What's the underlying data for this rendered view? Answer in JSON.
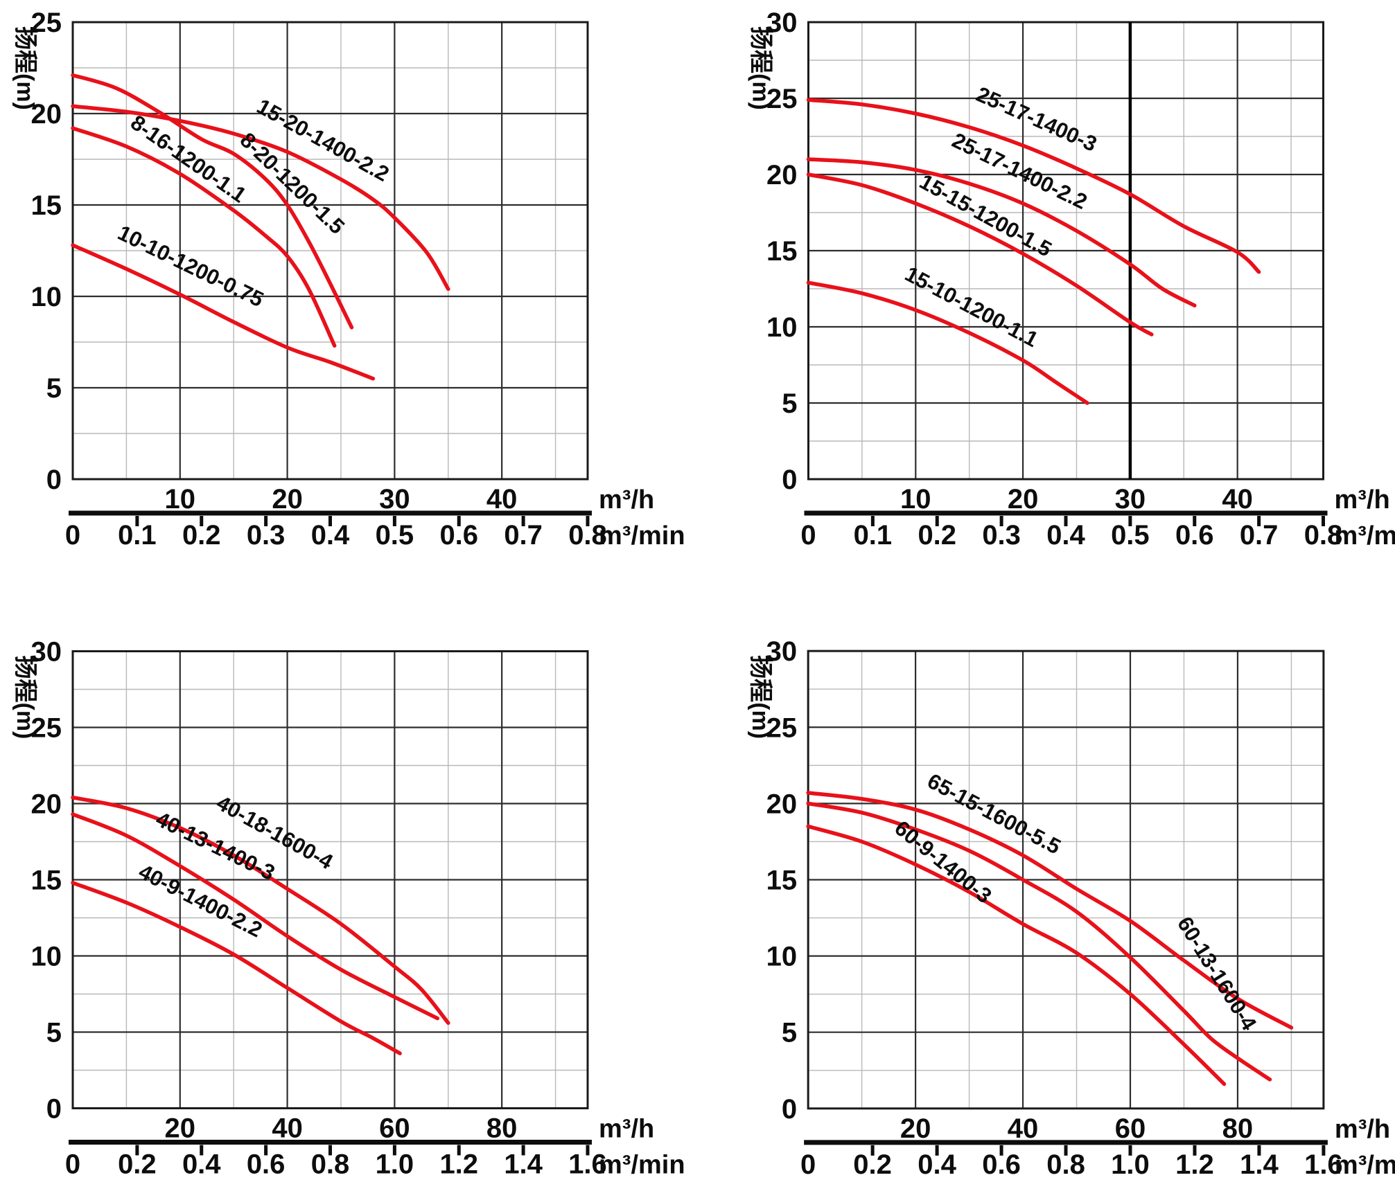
{
  "page": {
    "background": "#ffffff"
  },
  "chart_data": [
    {
      "type": "line",
      "id": "pump-curves-8-15",
      "ylabel": "扬程(m)",
      "x_unit_hour": "m³/h",
      "x_unit_min": "m³/min",
      "ylim": [
        0,
        25
      ],
      "xlim": [
        0,
        48
      ],
      "y_major": 5,
      "y_minor": 2.5,
      "x_major": 10,
      "x_minor": 5,
      "grid": true,
      "legend": "labels-on-curves",
      "curve_color": "#e8111a",
      "x_ticks_hour": [
        10,
        20,
        30,
        40
      ],
      "x_ticks_min": [
        "0",
        "0.1",
        "0.2",
        "0.3",
        "0.4",
        "0.5",
        "0.6",
        "0.7",
        "0.8"
      ],
      "vline_x": null,
      "series": [
        {
          "name": "8-20-1200-1.5",
          "points": [
            [
              0,
              22.1
            ],
            [
              4,
              21.4
            ],
            [
              8,
              20.1
            ],
            [
              12,
              18.6
            ],
            [
              15,
              17.8
            ],
            [
              18,
              16.4
            ],
            [
              20,
              15.0
            ],
            [
              22,
              13.0
            ],
            [
              24,
              10.7
            ],
            [
              26,
              8.3
            ]
          ],
          "label_x": 20.0,
          "label_y": 15.9,
          "label_angle": 44
        },
        {
          "name": "15-20-1400-2.2",
          "points": [
            [
              0,
              20.4
            ],
            [
              5,
              20.1
            ],
            [
              10,
              19.6
            ],
            [
              15,
              18.9
            ],
            [
              20,
              17.9
            ],
            [
              25,
              16.4
            ],
            [
              28,
              15.3
            ],
            [
              30,
              14.3
            ],
            [
              33,
              12.4
            ],
            [
              35,
              10.4
            ]
          ],
          "label_x": 23.0,
          "label_y": 18.2,
          "label_angle": 29
        },
        {
          "name": "8-16-1200-1.1",
          "points": [
            [
              0,
              19.2
            ],
            [
              5,
              18.2
            ],
            [
              10,
              16.7
            ],
            [
              15,
              14.7
            ],
            [
              18,
              13.3
            ],
            [
              20,
              12.2
            ],
            [
              22,
              10.4
            ],
            [
              24.4,
              7.3
            ]
          ],
          "label_x": 10.4,
          "label_y": 17.2,
          "label_angle": 35
        },
        {
          "name": "10-10-1200-0.75",
          "points": [
            [
              0,
              12.8
            ],
            [
              5,
              11.5
            ],
            [
              10,
              10.1
            ],
            [
              15,
              8.6
            ],
            [
              20,
              7.2
            ],
            [
              24,
              6.4
            ],
            [
              28,
              5.5
            ]
          ],
          "label_x": 10.7,
          "label_y": 11.3,
          "label_angle": 26
        }
      ]
    },
    {
      "type": "line",
      "id": "pump-curves-15-25",
      "ylabel": "扬程(m)",
      "x_unit_hour": "m³/h",
      "x_unit_min": "m³/min",
      "ylim": [
        0,
        30
      ],
      "xlim": [
        0,
        48
      ],
      "y_major": 5,
      "y_minor": 2.5,
      "x_major": 10,
      "x_minor": 5,
      "grid": true,
      "legend": "labels-on-curves",
      "curve_color": "#e8111a",
      "x_ticks_hour": [
        10,
        20,
        30,
        40
      ],
      "x_ticks_min": [
        "0",
        "0.1",
        "0.2",
        "0.3",
        "0.4",
        "0.5",
        "0.6",
        "0.7",
        "0.8"
      ],
      "vline_x": 30,
      "series": [
        {
          "name": "25-17-1400-3",
          "points": [
            [
              0,
              24.9
            ],
            [
              5,
              24.6
            ],
            [
              10,
              24.0
            ],
            [
              15,
              23.1
            ],
            [
              20,
              21.9
            ],
            [
              25,
              20.4
            ],
            [
              30,
              18.7
            ],
            [
              35,
              16.6
            ],
            [
              40,
              14.9
            ],
            [
              42,
              13.6
            ]
          ],
          "label_x": 21.0,
          "label_y": 23.2,
          "label_angle": 24
        },
        {
          "name": "25-17-1400-2.2",
          "points": [
            [
              0,
              21.0
            ],
            [
              5,
              20.8
            ],
            [
              10,
              20.3
            ],
            [
              15,
              19.4
            ],
            [
              20,
              18.1
            ],
            [
              25,
              16.3
            ],
            [
              30,
              14.1
            ],
            [
              33,
              12.5
            ],
            [
              36,
              11.4
            ]
          ],
          "label_x": 19.4,
          "label_y": 19.8,
          "label_angle": 26
        },
        {
          "name": "15-15-1200-1.5",
          "points": [
            [
              0,
              20.0
            ],
            [
              5,
              19.3
            ],
            [
              10,
              18.1
            ],
            [
              15,
              16.6
            ],
            [
              20,
              14.8
            ],
            [
              25,
              12.7
            ],
            [
              30,
              10.3
            ],
            [
              32,
              9.5
            ]
          ],
          "label_x": 16.2,
          "label_y": 16.9,
          "label_angle": 29
        },
        {
          "name": "15-10-1200-1.1",
          "points": [
            [
              0,
              12.9
            ],
            [
              5,
              12.2
            ],
            [
              10,
              11.1
            ],
            [
              15,
              9.6
            ],
            [
              20,
              7.8
            ],
            [
              23,
              6.4
            ],
            [
              26,
              5.0
            ]
          ],
          "label_x": 14.9,
          "label_y": 10.9,
          "label_angle": 28
        }
      ]
    },
    {
      "type": "line",
      "id": "pump-curves-40",
      "ylabel": "扬程(m)",
      "x_unit_hour": "m³/h",
      "x_unit_min": "m³/min",
      "ylim": [
        0,
        30
      ],
      "xlim": [
        0,
        96
      ],
      "y_major": 5,
      "y_minor": 2.5,
      "x_major": 20,
      "x_minor": 10,
      "grid": true,
      "legend": "labels-on-curves",
      "curve_color": "#e8111a",
      "x_ticks_hour": [
        20,
        40,
        60,
        80
      ],
      "x_ticks_min": [
        "0",
        "0.2",
        "0.4",
        "0.6",
        "0.8",
        "1.0",
        "1.2",
        "1.4",
        "1.6"
      ],
      "vline_x": null,
      "series": [
        {
          "name": "40-18-1600-4",
          "points": [
            [
              0,
              20.4
            ],
            [
              10,
              19.7
            ],
            [
              20,
              18.4
            ],
            [
              30,
              16.6
            ],
            [
              40,
              14.4
            ],
            [
              50,
              12.1
            ],
            [
              60,
              9.3
            ],
            [
              65,
              7.8
            ],
            [
              70,
              5.6
            ]
          ],
          "label_x": 37.0,
          "label_y": 17.7,
          "label_angle": 29
        },
        {
          "name": "40-13-1400-3",
          "points": [
            [
              0,
              19.3
            ],
            [
              10,
              17.9
            ],
            [
              20,
              15.9
            ],
            [
              30,
              13.7
            ],
            [
              40,
              11.3
            ],
            [
              50,
              9.1
            ],
            [
              60,
              7.3
            ],
            [
              68,
              5.9
            ]
          ],
          "label_x": 26.0,
          "label_y": 16.8,
          "label_angle": 26
        },
        {
          "name": "40-9-1400-2.2",
          "points": [
            [
              0,
              14.8
            ],
            [
              10,
              13.5
            ],
            [
              20,
              11.9
            ],
            [
              30,
              10.1
            ],
            [
              40,
              7.9
            ],
            [
              50,
              5.7
            ],
            [
              56,
              4.6
            ],
            [
              61,
              3.6
            ]
          ],
          "label_x": 23.2,
          "label_y": 13.2,
          "label_angle": 27
        }
      ]
    },
    {
      "type": "line",
      "id": "pump-curves-60-65",
      "ylabel": "扬程(m)",
      "x_unit_hour": "m³/h",
      "x_unit_min": "m³/min",
      "ylim": [
        0,
        30
      ],
      "xlim": [
        0,
        96
      ],
      "y_major": 5,
      "y_minor": 2.5,
      "x_major": 20,
      "x_minor": 10,
      "grid": true,
      "legend": "labels-on-curves",
      "curve_color": "#e8111a",
      "x_ticks_hour": [
        20,
        40,
        60,
        80
      ],
      "x_ticks_min": [
        "0",
        "0.2",
        "0.4",
        "0.6",
        "0.8",
        "1.0",
        "1.2",
        "1.4",
        "1.6"
      ],
      "vline_x": null,
      "series": [
        {
          "name": "65-15-1600-5.5",
          "points": [
            [
              0,
              20.7
            ],
            [
              10,
              20.3
            ],
            [
              20,
              19.6
            ],
            [
              30,
              18.3
            ],
            [
              40,
              16.6
            ],
            [
              50,
              14.4
            ],
            [
              60,
              12.3
            ],
            [
              70,
              9.7
            ],
            [
              80,
              7.2
            ],
            [
              90,
              5.3
            ]
          ],
          "label_x": 34.0,
          "label_y": 18.9,
          "label_angle": 28
        },
        {
          "name": "60-13-1600-4",
          "points": [
            [
              0,
              20.0
            ],
            [
              10,
              19.4
            ],
            [
              20,
              18.3
            ],
            [
              30,
              16.9
            ],
            [
              40,
              15.0
            ],
            [
              50,
              12.9
            ],
            [
              60,
              9.9
            ],
            [
              70,
              6.4
            ],
            [
              75,
              4.6
            ],
            [
              80,
              3.3
            ],
            [
              86,
              1.9
            ]
          ],
          "label_x": 75.0,
          "label_y": 8.6,
          "label_angle": 58
        },
        {
          "name": "60-9-1400-3",
          "points": [
            [
              0,
              18.5
            ],
            [
              10,
              17.5
            ],
            [
              20,
              16.0
            ],
            [
              30,
              14.2
            ],
            [
              40,
              12.1
            ],
            [
              50,
              10.2
            ],
            [
              60,
              7.5
            ],
            [
              70,
              4.2
            ],
            [
              77.5,
              1.6
            ]
          ],
          "label_x": 24.3,
          "label_y": 15.8,
          "label_angle": 39
        }
      ]
    }
  ]
}
